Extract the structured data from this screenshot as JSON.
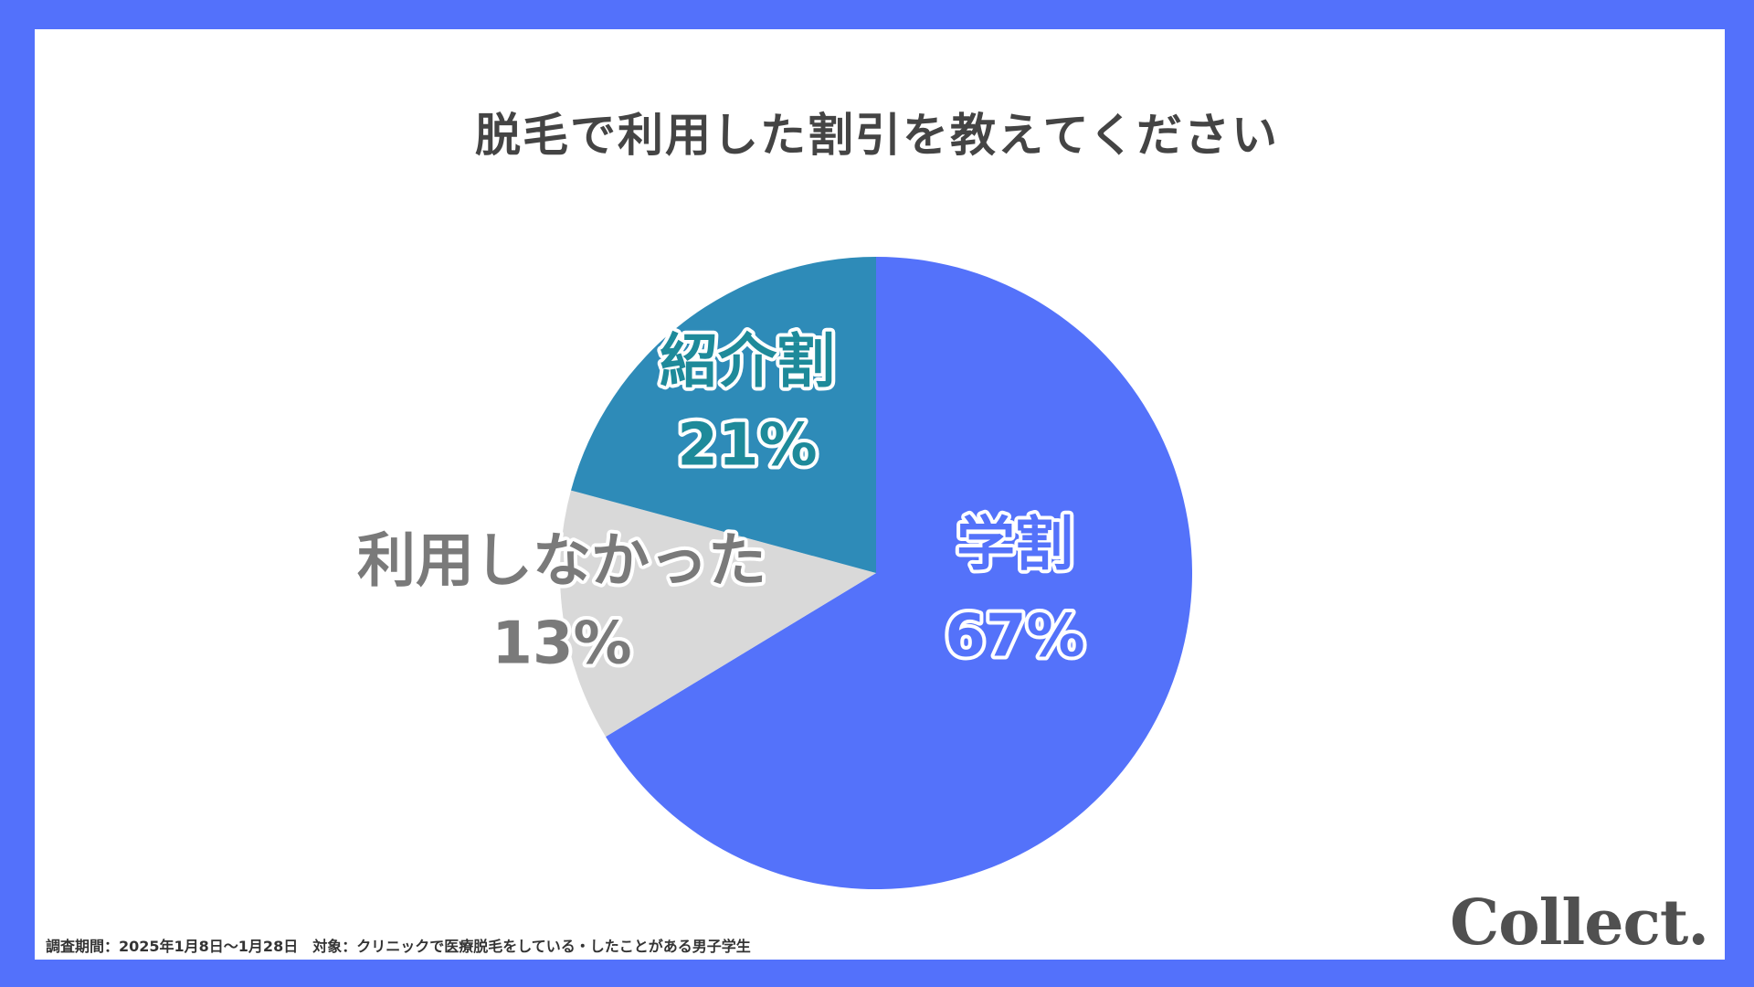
{
  "title": "脱毛で利用した割引を教えてください",
  "chart_data": {
    "type": "pie",
    "title": "脱毛で利用した割引を教えてください",
    "start": "top",
    "direction": "clockwise",
    "slices": [
      {
        "label": "学割",
        "value": 67,
        "value_label": "67%",
        "color": "#5472fa",
        "text_color": "#5472fa"
      },
      {
        "label": "利用しなかった",
        "value": 13,
        "value_label": "13%",
        "color": "#d9d9d9",
        "text_color": "#7a7a7a"
      },
      {
        "label": "紹介割",
        "value": 21,
        "value_label": "21%",
        "color": "#2e8bb8",
        "text_color": "#1e8a9a"
      }
    ]
  },
  "footer": "調査期間：2025年1月8日～1月28日　対象：クリニックで医療脱毛をしている・したことがある男子学生",
  "logo": "Collect.",
  "colors": {
    "border": "#5371fb",
    "background": "#ffffff"
  }
}
